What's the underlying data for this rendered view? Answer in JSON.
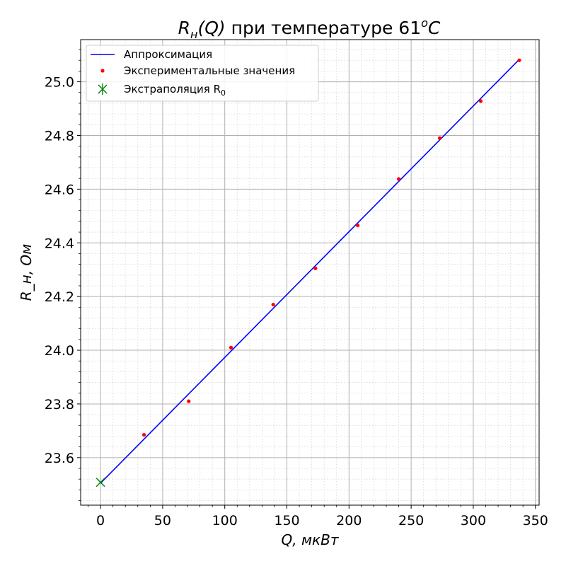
{
  "chart_data": {
    "type": "scatter",
    "title": "R_н(Q) при температуре 61°C",
    "title_parts": {
      "r": "R",
      "sub": "н",
      "mid": "(Q)",
      "rest": " при температуре 61",
      "deg": "o",
      "unit": "C"
    },
    "xlabel": "Q, мкВт",
    "ylabel": "R_н, Ом",
    "xlim": [
      -16,
      353
    ],
    "ylim": [
      23.423,
      25.157
    ],
    "x_ticks": [
      0,
      50,
      100,
      150,
      200,
      250,
      300,
      350
    ],
    "y_ticks": [
      23.6,
      23.8,
      24.0,
      24.2,
      24.4,
      24.6,
      24.8,
      25.0
    ],
    "x_tick_labels": [
      "0",
      "50",
      "100",
      "150",
      "200",
      "250",
      "300",
      "350"
    ],
    "y_tick_labels": [
      "23.6",
      "23.8",
      "24.0",
      "24.2",
      "24.4",
      "24.6",
      "24.8",
      "25.0"
    ],
    "grid": true,
    "minor_grid": true,
    "legend_position": "top-left",
    "series": [
      {
        "name": "Аппроксимация",
        "kind": "line",
        "color": "#0000ff",
        "x": [
          0,
          337
        ],
        "y": [
          23.505,
          25.083
        ]
      },
      {
        "name": "Экспериментальные значения",
        "kind": "points",
        "color": "#ff0000",
        "x": [
          35,
          71,
          105,
          139,
          173,
          207,
          240,
          273,
          306,
          337
        ],
        "y": [
          23.685,
          23.81,
          24.01,
          24.17,
          24.305,
          24.465,
          24.638,
          24.79,
          24.928,
          25.08
        ]
      },
      {
        "name": "Экстраполяция R",
        "name_subscript": "0",
        "kind": "marker",
        "color": "#008000",
        "x": [
          0
        ],
        "y": [
          23.508
        ]
      }
    ]
  }
}
